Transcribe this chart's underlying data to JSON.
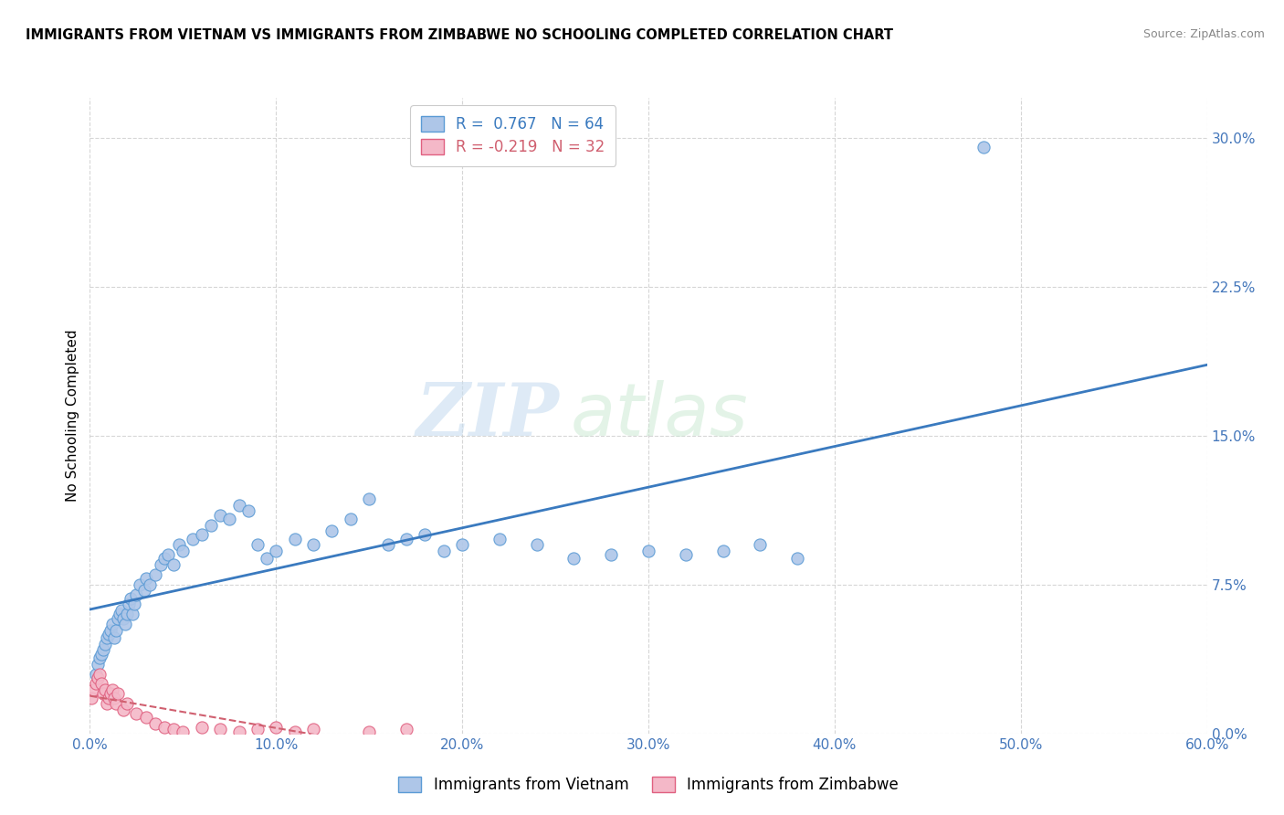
{
  "title": "IMMIGRANTS FROM VIETNAM VS IMMIGRANTS FROM ZIMBABWE NO SCHOOLING COMPLETED CORRELATION CHART",
  "source": "Source: ZipAtlas.com",
  "ylabel": "No Schooling Completed",
  "xlim": [
    0.0,
    0.6
  ],
  "ylim": [
    0.0,
    0.32
  ],
  "xtick_labels": [
    "0.0%",
    "10.0%",
    "20.0%",
    "30.0%",
    "40.0%",
    "50.0%",
    "60.0%"
  ],
  "xtick_values": [
    0.0,
    0.1,
    0.2,
    0.3,
    0.4,
    0.5,
    0.6
  ],
  "ytick_labels": [
    "0.0%",
    "7.5%",
    "15.0%",
    "22.5%",
    "30.0%"
  ],
  "ytick_values": [
    0.0,
    0.075,
    0.15,
    0.225,
    0.3
  ],
  "vietnam_color": "#aec6e8",
  "zimbabwe_color": "#f4b8c8",
  "vietnam_edge_color": "#5b9bd5",
  "zimbabwe_edge_color": "#e06080",
  "regression_vietnam_color": "#3a7abf",
  "regression_zimbabwe_color": "#d06070",
  "R_vietnam": 0.767,
  "N_vietnam": 64,
  "R_zimbabwe": -0.219,
  "N_zimbabwe": 32,
  "legend_label_vietnam": "Immigrants from Vietnam",
  "legend_label_zimbabwe": "Immigrants from Zimbabwe",
  "watermark_zip": "ZIP",
  "watermark_atlas": "atlas",
  "background_color": "#ffffff",
  "grid_color": "#cccccc",
  "vietnam_x": [
    0.003,
    0.004,
    0.005,
    0.006,
    0.007,
    0.008,
    0.009,
    0.01,
    0.011,
    0.012,
    0.013,
    0.014,
    0.015,
    0.016,
    0.017,
    0.018,
    0.019,
    0.02,
    0.021,
    0.022,
    0.023,
    0.024,
    0.025,
    0.027,
    0.029,
    0.03,
    0.032,
    0.035,
    0.038,
    0.04,
    0.042,
    0.045,
    0.048,
    0.05,
    0.055,
    0.06,
    0.065,
    0.07,
    0.075,
    0.08,
    0.085,
    0.09,
    0.095,
    0.1,
    0.11,
    0.12,
    0.13,
    0.14,
    0.15,
    0.16,
    0.17,
    0.18,
    0.19,
    0.2,
    0.22,
    0.24,
    0.26,
    0.28,
    0.3,
    0.32,
    0.34,
    0.36,
    0.38,
    0.48
  ],
  "vietnam_y": [
    0.03,
    0.035,
    0.038,
    0.04,
    0.042,
    0.045,
    0.048,
    0.05,
    0.052,
    0.055,
    0.048,
    0.052,
    0.058,
    0.06,
    0.062,
    0.058,
    0.055,
    0.06,
    0.065,
    0.068,
    0.06,
    0.065,
    0.07,
    0.075,
    0.072,
    0.078,
    0.075,
    0.08,
    0.085,
    0.088,
    0.09,
    0.085,
    0.095,
    0.092,
    0.098,
    0.1,
    0.105,
    0.11,
    0.108,
    0.115,
    0.112,
    0.095,
    0.088,
    0.092,
    0.098,
    0.095,
    0.102,
    0.108,
    0.118,
    0.095,
    0.098,
    0.1,
    0.092,
    0.095,
    0.098,
    0.095,
    0.088,
    0.09,
    0.092,
    0.09,
    0.092,
    0.095,
    0.088,
    0.295
  ],
  "zimbabwe_x": [
    0.001,
    0.002,
    0.003,
    0.004,
    0.005,
    0.006,
    0.007,
    0.008,
    0.009,
    0.01,
    0.011,
    0.012,
    0.013,
    0.014,
    0.015,
    0.018,
    0.02,
    0.025,
    0.03,
    0.035,
    0.04,
    0.045,
    0.05,
    0.06,
    0.07,
    0.08,
    0.09,
    0.1,
    0.11,
    0.12,
    0.15,
    0.17
  ],
  "zimbabwe_y": [
    0.018,
    0.022,
    0.025,
    0.028,
    0.03,
    0.025,
    0.02,
    0.022,
    0.015,
    0.018,
    0.02,
    0.022,
    0.018,
    0.015,
    0.02,
    0.012,
    0.015,
    0.01,
    0.008,
    0.005,
    0.003,
    0.002,
    0.001,
    0.003,
    0.002,
    0.001,
    0.002,
    0.003,
    0.001,
    0.002,
    0.001,
    0.002
  ]
}
